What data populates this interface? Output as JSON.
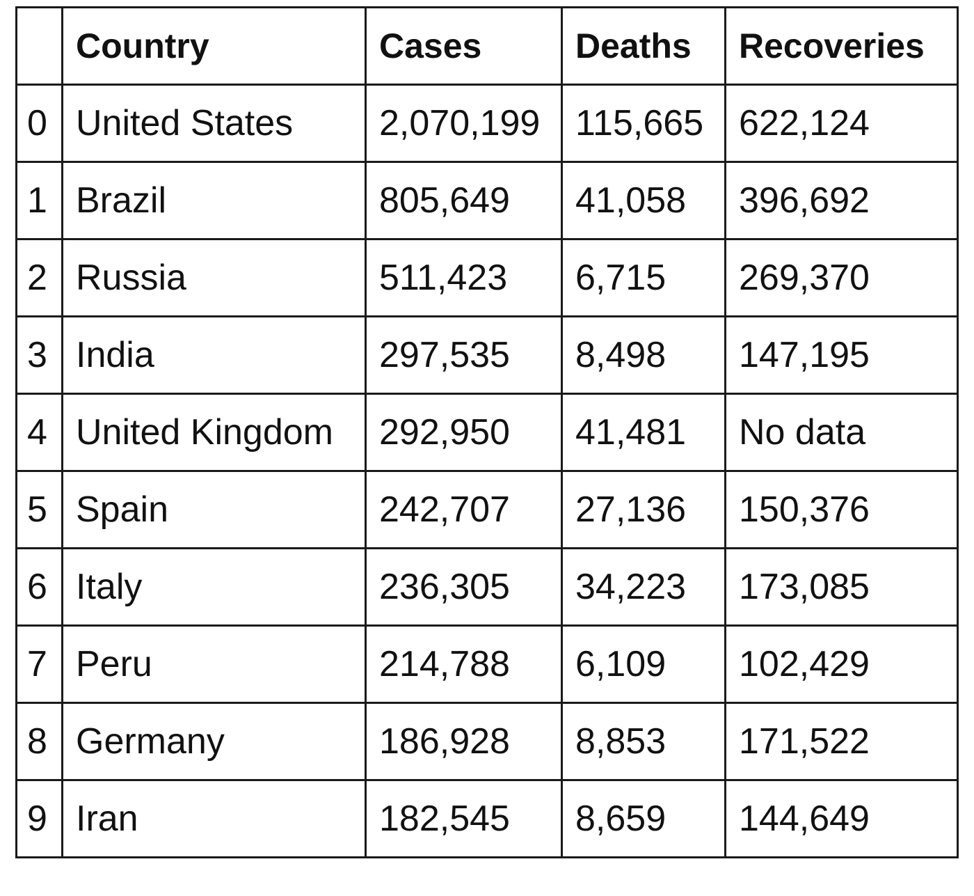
{
  "table": {
    "headers": [
      "",
      "Country",
      "Cases",
      "Deaths",
      "Recoveries"
    ],
    "rows": [
      {
        "index": "0",
        "country": "United States",
        "cases": "2,070,199",
        "deaths": "115,665",
        "recoveries": "622,124"
      },
      {
        "index": "1",
        "country": "Brazil",
        "cases": "805,649",
        "deaths": "41,058",
        "recoveries": "396,692"
      },
      {
        "index": "2",
        "country": "Russia",
        "cases": "511,423",
        "deaths": "6,715",
        "recoveries": "269,370"
      },
      {
        "index": "3",
        "country": "India",
        "cases": "297,535",
        "deaths": "8,498",
        "recoveries": "147,195"
      },
      {
        "index": "4",
        "country": "United Kingdom",
        "cases": "292,950",
        "deaths": "41,481",
        "recoveries": "No data"
      },
      {
        "index": "5",
        "country": "Spain",
        "cases": "242,707",
        "deaths": "27,136",
        "recoveries": "150,376"
      },
      {
        "index": "6",
        "country": "Italy",
        "cases": "236,305",
        "deaths": "34,223",
        "recoveries": "173,085"
      },
      {
        "index": "7",
        "country": "Peru",
        "cases": "214,788",
        "deaths": "6,109",
        "recoveries": "102,429"
      },
      {
        "index": "8",
        "country": "Germany",
        "cases": "186,928",
        "deaths": "8,853",
        "recoveries": "171,522"
      },
      {
        "index": "9",
        "country": "Iran",
        "cases": "182,545",
        "deaths": "8,659",
        "recoveries": "144,649"
      }
    ]
  }
}
